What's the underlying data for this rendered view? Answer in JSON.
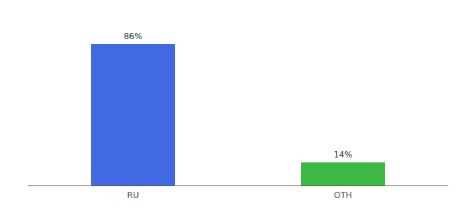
{
  "chart_data": {
    "type": "bar",
    "categories": [
      "RU",
      "OTH"
    ],
    "values": [
      86,
      14
    ],
    "value_labels": [
      "86%",
      "14%"
    ],
    "colors": [
      "#4169e1",
      "#3cb843"
    ],
    "ylim": [
      0,
      100
    ],
    "grid": false,
    "data_labels": true,
    "tick_labels": "x"
  }
}
